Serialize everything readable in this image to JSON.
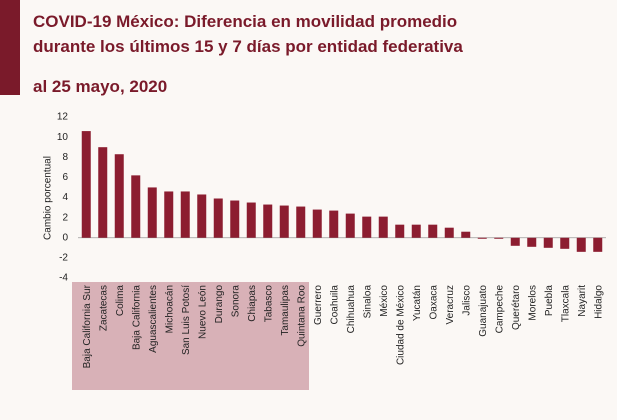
{
  "chart_data": {
    "type": "bar",
    "title": "COVID-19 México: Diferencia en movilidad promedio",
    "subtitle": "durante los últimos 15 y 7 días por entidad federativa",
    "date_label": "al 25 mayo, 2020",
    "y_label": "Cambio porcentual",
    "categories": [
      "Baja California Sur",
      "Zacatecas",
      "Colima",
      "Baja California",
      "Aguascalientes",
      "Michoacán",
      "San Luis Potosí",
      "Nuevo León",
      "Durango",
      "Sonora",
      "Chiapas",
      "Tabasco",
      "Tamaulipas",
      "Quintana Roo",
      "Guerrero",
      "Coahuila",
      "Chihuahua",
      "Sinaloa",
      "México",
      "Ciudad de México",
      "Yucatán",
      "Oaxaca",
      "Veracruz",
      "Jalisco",
      "Guanajuato",
      "Campeche",
      "Querétaro",
      "Morelos",
      "Puebla",
      "Tlaxcala",
      "Nayarit",
      "Hidalgo"
    ],
    "values": [
      10.6,
      9.0,
      8.3,
      6.2,
      5.0,
      4.6,
      4.6,
      4.3,
      3.9,
      3.7,
      3.5,
      3.3,
      3.2,
      3.1,
      2.8,
      2.7,
      2.4,
      2.1,
      2.1,
      1.3,
      1.3,
      1.3,
      1.0,
      0.6,
      -0.1,
      -0.1,
      -0.8,
      -0.9,
      -1.0,
      -1.1,
      -1.4,
      -1.4
    ],
    "color": "#8c1d30",
    "ylim": [
      -4,
      12
    ],
    "yticks": [
      -4,
      -2,
      0,
      2,
      4,
      6,
      8,
      10,
      12
    ]
  }
}
